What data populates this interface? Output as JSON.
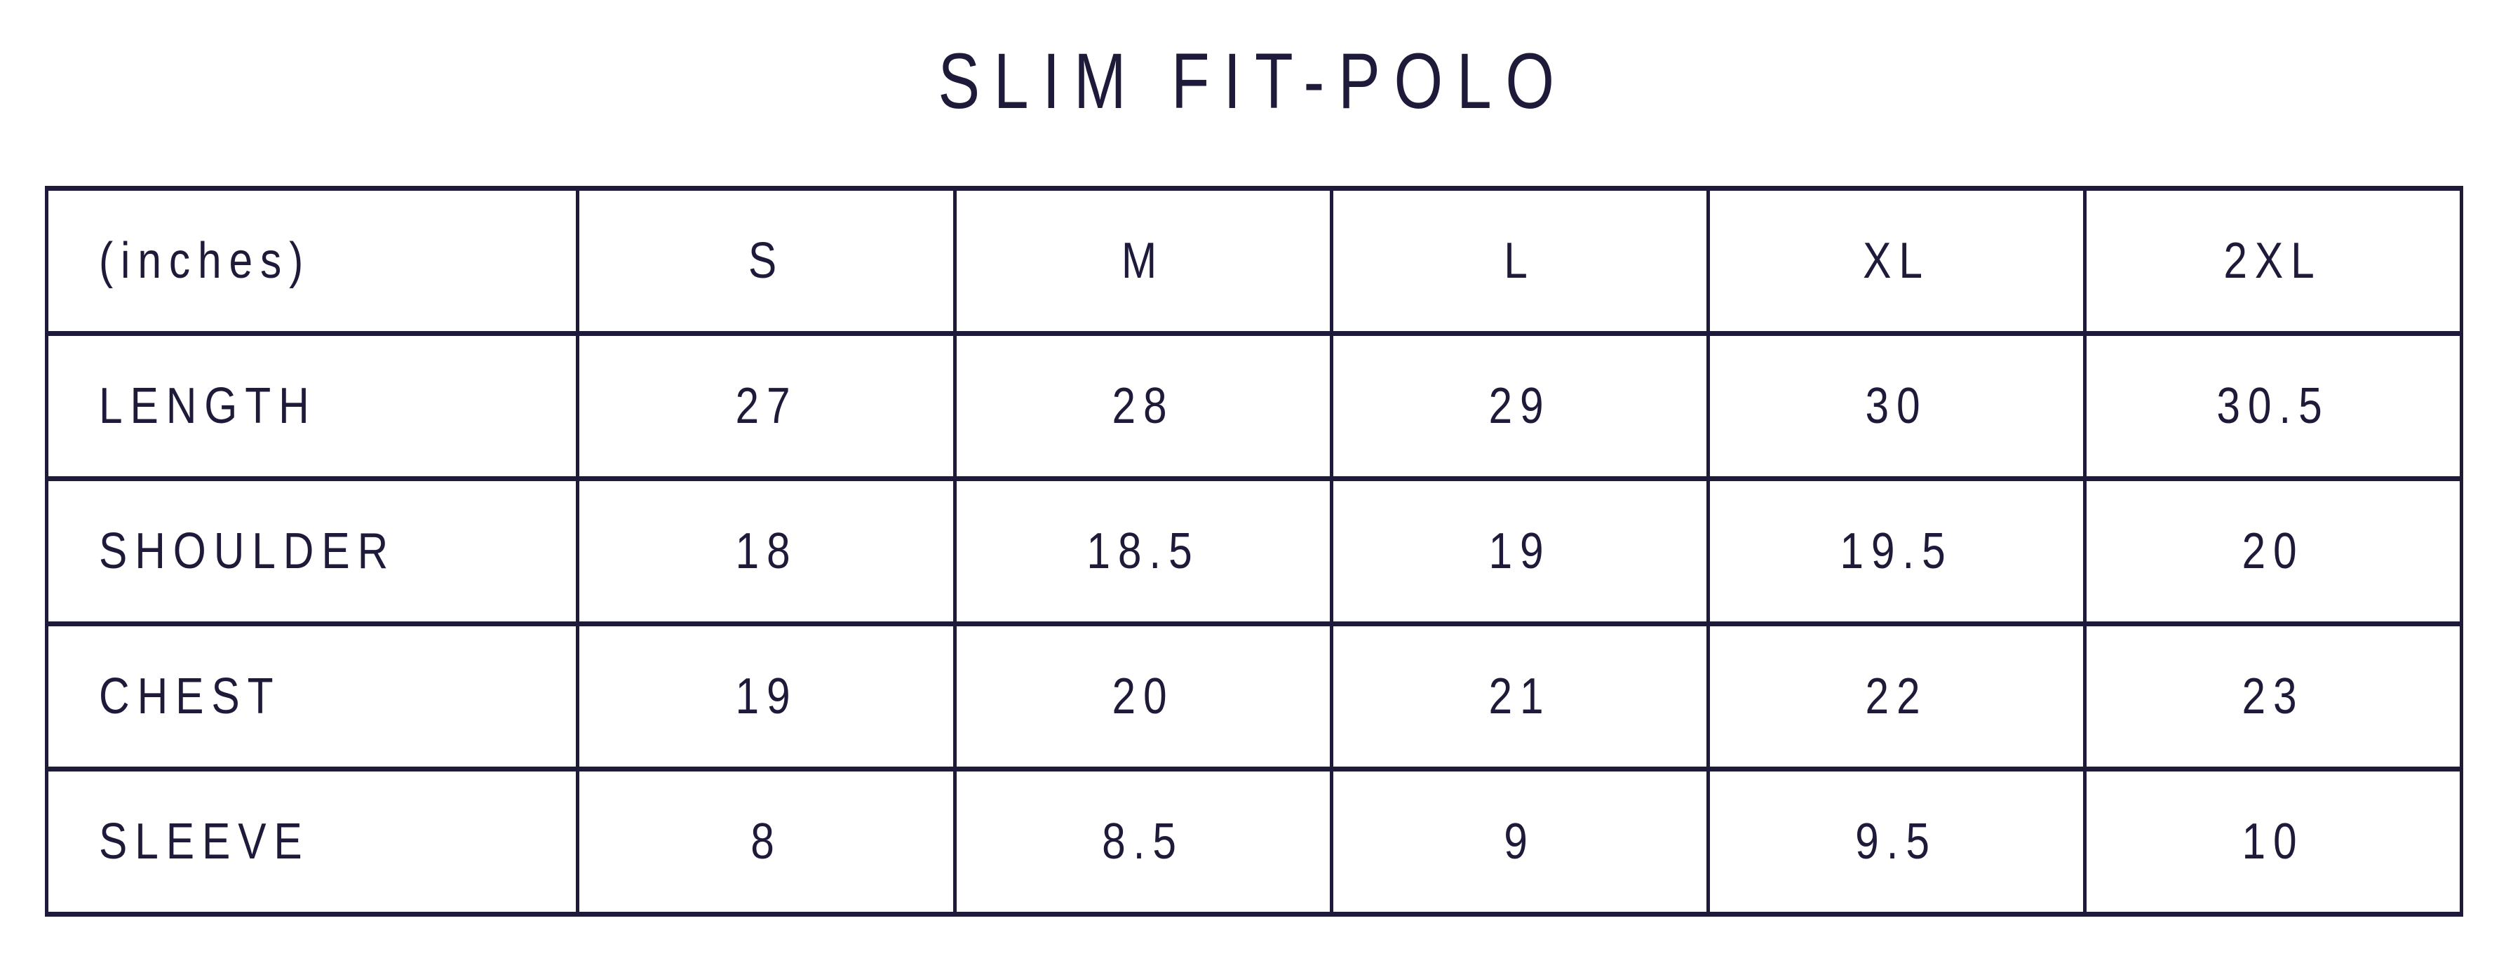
{
  "title": {
    "text": "SLIM FIT-POLO"
  },
  "table": {
    "headers": [
      "(inches)",
      "S",
      "M",
      "L",
      "XL",
      "2XL"
    ],
    "rows": [
      {
        "label": "LENGTH",
        "values": [
          "27",
          "28",
          "29",
          "30",
          "30.5"
        ]
      },
      {
        "label": "SHOULDER",
        "values": [
          "18",
          "18.5",
          "19",
          "19.5",
          "20"
        ]
      },
      {
        "label": "CHEST",
        "values": [
          "19",
          "20",
          "21",
          "22",
          "23"
        ]
      },
      {
        "label": "SLEEVE",
        "values": [
          "8",
          "8.5",
          "9",
          "9.5",
          "10"
        ]
      }
    ]
  },
  "colors": {
    "ink": "#1e1b3a",
    "background": "#ffffff"
  },
  "chart_data": {
    "type": "table",
    "title": "SLIM FIT-POLO",
    "columns": [
      "(inches)",
      "S",
      "M",
      "L",
      "XL",
      "2XL"
    ],
    "rows": [
      [
        "LENGTH",
        27,
        28,
        29,
        30,
        30.5
      ],
      [
        "SHOULDER",
        18,
        18.5,
        19,
        19.5,
        20
      ],
      [
        "CHEST",
        19,
        20,
        21,
        22,
        23
      ],
      [
        "SLEEVE",
        8,
        8.5,
        9,
        9.5,
        10
      ]
    ]
  }
}
